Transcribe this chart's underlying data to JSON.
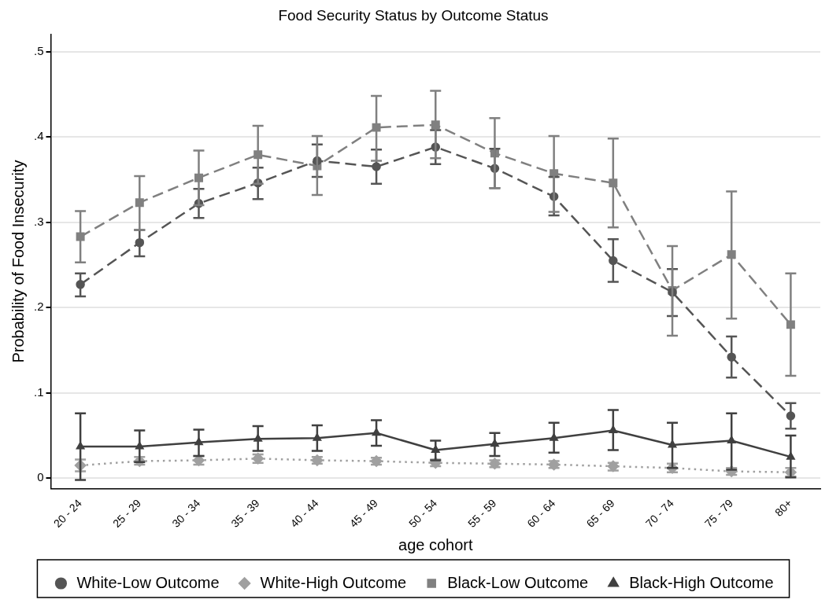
{
  "chart_data": {
    "type": "line",
    "title": "Food Security Status by Outcome Status",
    "xlabel": "age cohort",
    "ylabel": "Probability of Food Insecurity",
    "categories": [
      "20 - 24",
      "25 - 29",
      "30 - 34",
      "35 - 39",
      "40 - 44",
      "45 - 49",
      "50 - 54",
      "55 - 59",
      "60 - 64",
      "65 - 69",
      "70 - 74",
      "75 - 79",
      "80+"
    ],
    "ylim": [
      -0.012,
      0.52
    ],
    "yticks": [
      {
        "value": 0,
        "label": "0"
      },
      {
        "value": 0.1,
        "label": ".1"
      },
      {
        "value": 0.2,
        "label": ".2"
      },
      {
        "value": 0.3,
        "label": ".3"
      },
      {
        "value": 0.4,
        "label": ".4"
      },
      {
        "value": 0.5,
        "label": ".5"
      }
    ],
    "grid": "y",
    "legend": "bottom",
    "series": [
      {
        "name": "White-Low Outcome",
        "color": "#555555",
        "marker": "circle",
        "line_style": "dashed",
        "values": [
          0.227,
          0.276,
          0.322,
          0.346,
          0.372,
          0.365,
          0.388,
          0.363,
          0.33,
          0.255,
          0.218,
          0.142,
          0.073
        ],
        "errors": [
          [
            0.213,
            0.24
          ],
          [
            0.26,
            0.291
          ],
          [
            0.305,
            0.339
          ],
          [
            0.327,
            0.364
          ],
          [
            0.353,
            0.391
          ],
          [
            0.345,
            0.385
          ],
          [
            0.368,
            0.408
          ],
          [
            0.34,
            0.386
          ],
          [
            0.308,
            0.353
          ],
          [
            0.23,
            0.28
          ],
          [
            0.19,
            0.245
          ],
          [
            0.118,
            0.166
          ],
          [
            0.058,
            0.088
          ]
        ]
      },
      {
        "name": "White-High Outcome",
        "color": "#a0a0a0",
        "marker": "diamond",
        "line_style": "dotted",
        "values": [
          0.015,
          0.02,
          0.021,
          0.023,
          0.021,
          0.02,
          0.018,
          0.017,
          0.016,
          0.014,
          0.012,
          0.008,
          0.007
        ],
        "errors": [
          [
            0.008,
            0.022
          ],
          [
            0.016,
            0.025
          ],
          [
            0.016,
            0.026
          ],
          [
            0.018,
            0.028
          ],
          [
            0.017,
            0.025
          ],
          [
            0.016,
            0.024
          ],
          [
            0.014,
            0.022
          ],
          [
            0.013,
            0.021
          ],
          [
            0.012,
            0.02
          ],
          [
            0.009,
            0.018
          ],
          [
            0.007,
            0.017
          ],
          [
            0.004,
            0.012
          ],
          [
            0.002,
            0.012
          ]
        ]
      },
      {
        "name": "Black-Low Outcome",
        "color": "#808080",
        "marker": "square",
        "line_style": "dashed",
        "values": [
          0.283,
          0.323,
          0.352,
          0.379,
          0.366,
          0.411,
          0.414,
          0.381,
          0.357,
          0.346,
          0.22,
          0.262,
          0.18
        ],
        "errors": [
          [
            0.253,
            0.313
          ],
          [
            0.291,
            0.354
          ],
          [
            0.32,
            0.384
          ],
          [
            0.345,
            0.413
          ],
          [
            0.332,
            0.401
          ],
          [
            0.372,
            0.448
          ],
          [
            0.375,
            0.454
          ],
          [
            0.34,
            0.422
          ],
          [
            0.312,
            0.401
          ],
          [
            0.294,
            0.398
          ],
          [
            0.167,
            0.272
          ],
          [
            0.187,
            0.336
          ],
          [
            0.12,
            0.24
          ]
        ]
      },
      {
        "name": "Black-High Outcome",
        "color": "#404040",
        "marker": "triangle",
        "line_style": "solid",
        "values": [
          0.037,
          0.037,
          0.042,
          0.046,
          0.047,
          0.053,
          0.033,
          0.04,
          0.047,
          0.056,
          0.039,
          0.044,
          0.025
        ],
        "errors": [
          [
            -0.002,
            0.076
          ],
          [
            0.019,
            0.056
          ],
          [
            0.026,
            0.057
          ],
          [
            0.032,
            0.061
          ],
          [
            0.032,
            0.062
          ],
          [
            0.038,
            0.068
          ],
          [
            0.021,
            0.044
          ],
          [
            0.026,
            0.053
          ],
          [
            0.03,
            0.065
          ],
          [
            0.033,
            0.08
          ],
          [
            0.012,
            0.065
          ],
          [
            0.01,
            0.076
          ],
          [
            0.001,
            0.05
          ]
        ]
      }
    ]
  }
}
